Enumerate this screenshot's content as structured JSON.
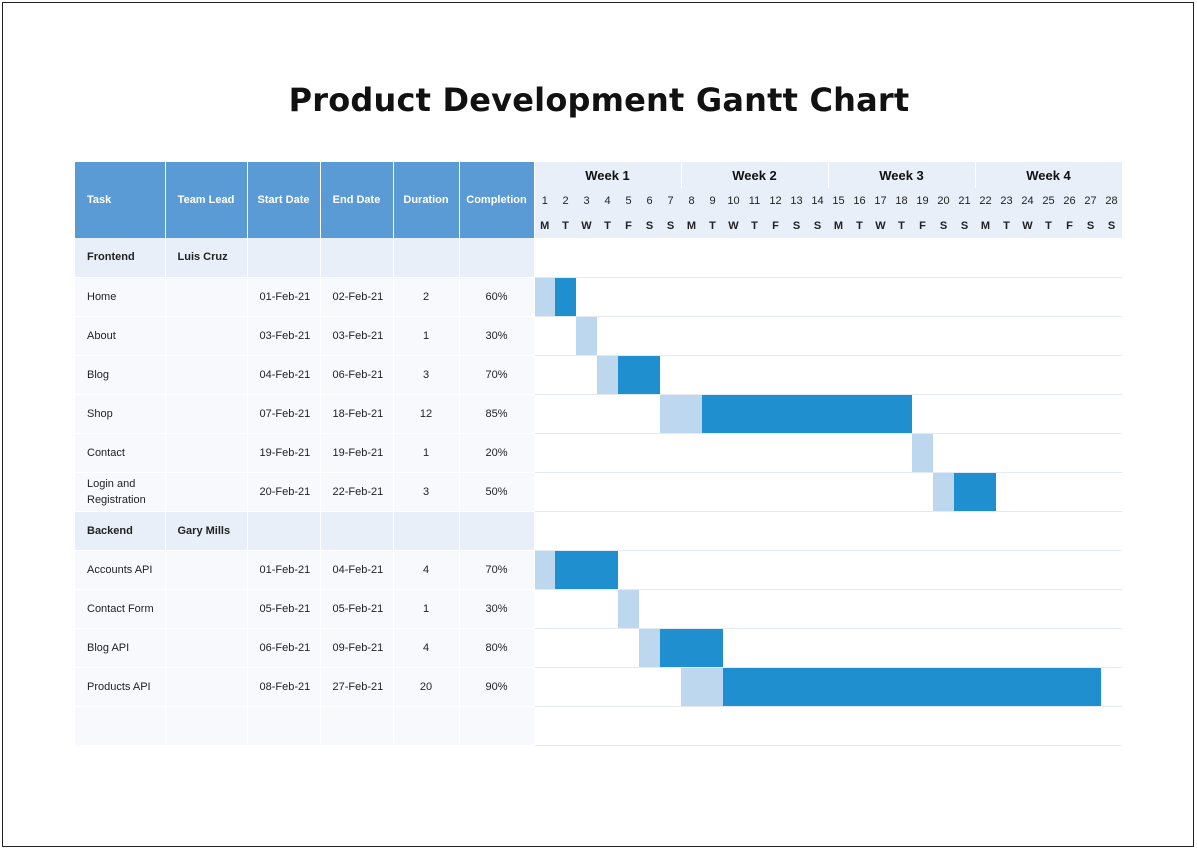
{
  "title": "Product Development Gantt Chart",
  "columns": {
    "task": "Task",
    "team_lead": "Team Lead",
    "start_date": "Start Date",
    "end_date": "End Date",
    "duration": "Duration",
    "completion": "Completion"
  },
  "colors": {
    "header": "#5b9bd5",
    "timeline_header": "#e8eff9",
    "group_row": "#e8eff9",
    "bar_pending": "#bdd7ee",
    "bar_done": "#1f8fcf"
  },
  "weeks": [
    "Week 1",
    "Week 2",
    "Week 3",
    "Week 4"
  ],
  "days": [
    "1",
    "2",
    "3",
    "4",
    "5",
    "6",
    "7",
    "8",
    "9",
    "10",
    "11",
    "12",
    "13",
    "14",
    "15",
    "16",
    "17",
    "18",
    "19",
    "20",
    "21",
    "22",
    "23",
    "24",
    "25",
    "26",
    "27",
    "28"
  ],
  "day_letters": [
    "M",
    "T",
    "W",
    "T",
    "F",
    "S",
    "S",
    "M",
    "T",
    "W",
    "T",
    "F",
    "S",
    "S",
    "M",
    "T",
    "W",
    "T",
    "F",
    "S",
    "S",
    "M",
    "T",
    "W",
    "T",
    "F",
    "S",
    "S"
  ],
  "chart_data": {
    "type": "gantt",
    "title": "Product Development Gantt Chart",
    "x_unit": "day of February 2021",
    "xlim": [
      1,
      28
    ],
    "groups": [
      {
        "name": "Frontend",
        "lead": "Luis Cruz",
        "tasks": [
          {
            "name": "Home",
            "start": "01-Feb-21",
            "end": "02-Feb-21",
            "duration": "2",
            "completion": "60%",
            "start_day": 1,
            "duration_days": 2,
            "completion_value": 0.6
          },
          {
            "name": "About",
            "start": "03-Feb-21",
            "end": "03-Feb-21",
            "duration": "1",
            "completion": "30%",
            "start_day": 3,
            "duration_days": 1,
            "completion_value": 0.3
          },
          {
            "name": "Blog",
            "start": "04-Feb-21",
            "end": "06-Feb-21",
            "duration": "3",
            "completion": "70%",
            "start_day": 4,
            "duration_days": 3,
            "completion_value": 0.7
          },
          {
            "name": "Shop",
            "start": "07-Feb-21",
            "end": "18-Feb-21",
            "duration": "12",
            "completion": "85%",
            "start_day": 7,
            "duration_days": 12,
            "completion_value": 0.85
          },
          {
            "name": "Contact",
            "start": "19-Feb-21",
            "end": "19-Feb-21",
            "duration": "1",
            "completion": "20%",
            "start_day": 19,
            "duration_days": 1,
            "completion_value": 0.2
          },
          {
            "name": "Login and Registration",
            "start": "20-Feb-21",
            "end": "22-Feb-21",
            "duration": "3",
            "completion": "50%",
            "start_day": 20,
            "duration_days": 3,
            "completion_value": 0.5
          }
        ]
      },
      {
        "name": "Backend",
        "lead": "Gary Mills",
        "tasks": [
          {
            "name": "Accounts API",
            "start": "01-Feb-21",
            "end": "04-Feb-21",
            "duration": "4",
            "completion": "70%",
            "start_day": 1,
            "duration_days": 4,
            "completion_value": 0.7
          },
          {
            "name": "Contact Form",
            "start": "05-Feb-21",
            "end": "05-Feb-21",
            "duration": "1",
            "completion": "30%",
            "start_day": 5,
            "duration_days": 1,
            "completion_value": 0.3
          },
          {
            "name": "Blog API",
            "start": "06-Feb-21",
            "end": "09-Feb-21",
            "duration": "4",
            "completion": "80%",
            "start_day": 6,
            "duration_days": 4,
            "completion_value": 0.8
          },
          {
            "name": "Products API",
            "start": "08-Feb-21",
            "end": "27-Feb-21",
            "duration": "20",
            "completion": "90%",
            "start_day": 8,
            "duration_days": 20,
            "completion_value": 0.9
          }
        ]
      }
    ]
  }
}
